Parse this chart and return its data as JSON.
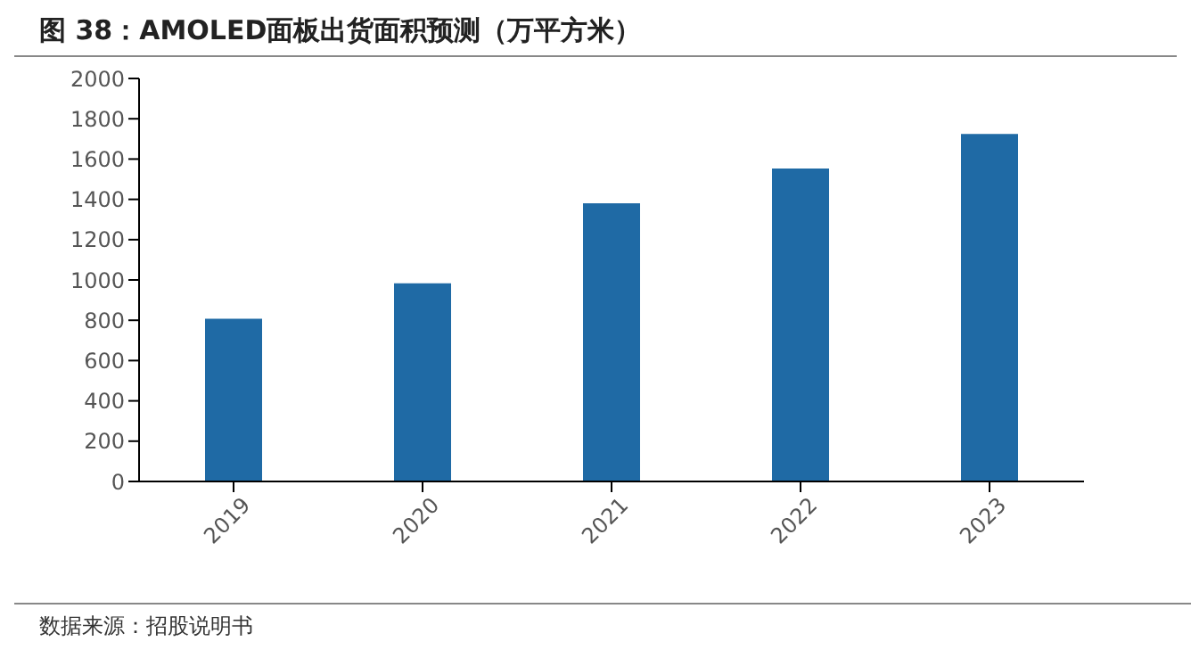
{
  "chart_data": {
    "type": "bar",
    "title": "图 38：AMOLED面板出货面积预测（万平方米）",
    "categories": [
      "2019",
      "2020",
      "2021",
      "2022",
      "2023"
    ],
    "values": [
      807,
      983,
      1380,
      1553,
      1725
    ],
    "color": "#1f6aa5",
    "ylim": [
      0,
      2000
    ],
    "yticks": [
      0,
      200,
      400,
      600,
      800,
      1000,
      1200,
      1400,
      1600,
      1800,
      2000
    ],
    "grid": false,
    "annotations": [
      "数据来源：招股说明书"
    ]
  }
}
